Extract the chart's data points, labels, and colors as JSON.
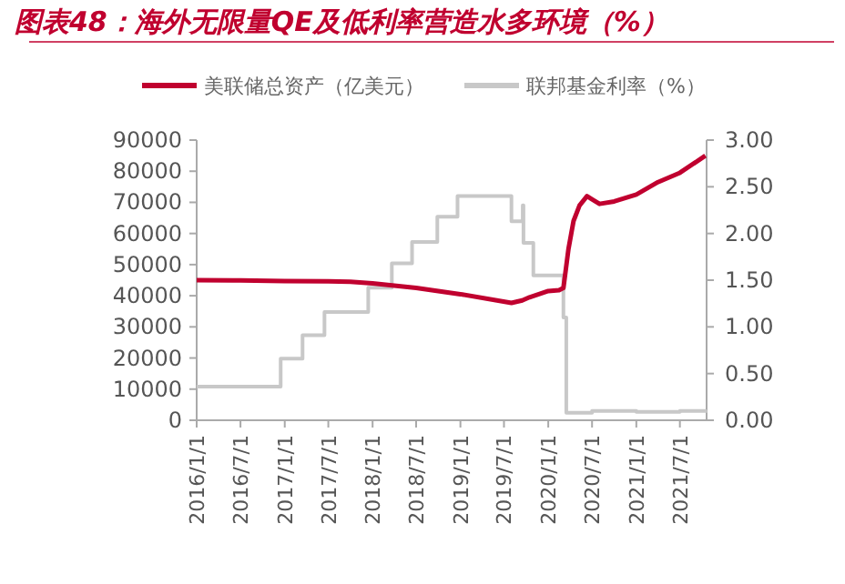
{
  "chart_data": {
    "type": "line",
    "title": "图表48：海外无限量QE及低利率营造水多环境（%）",
    "legend": "top",
    "grid": false,
    "xlim": [
      "2016-01-01",
      "2021-10-20"
    ],
    "xticks": [
      {
        "value": "2016-01-01",
        "label": "2016/1/1"
      },
      {
        "value": "2016-07-01",
        "label": "2016/7/1"
      },
      {
        "value": "2017-01-01",
        "label": "2017/1/1"
      },
      {
        "value": "2017-07-01",
        "label": "2017/7/1"
      },
      {
        "value": "2018-01-01",
        "label": "2018/1/1"
      },
      {
        "value": "2018-07-01",
        "label": "2018/7/1"
      },
      {
        "value": "2019-01-01",
        "label": "2019/1/1"
      },
      {
        "value": "2019-07-01",
        "label": "2019/7/1"
      },
      {
        "value": "2020-01-01",
        "label": "2020/1/1"
      },
      {
        "value": "2020-07-01",
        "label": "2020/7/1"
      },
      {
        "value": "2021-01-01",
        "label": "2021/1/1"
      },
      {
        "value": "2021-07-01",
        "label": "2021/7/1"
      }
    ],
    "ylim": [
      0,
      90000
    ],
    "yticks": [
      0,
      10000,
      20000,
      30000,
      40000,
      50000,
      60000,
      70000,
      80000,
      90000
    ],
    "y2lim": [
      0,
      3
    ],
    "y2ticks": [
      {
        "value": 0,
        "label": "0.00"
      },
      {
        "value": 0.5,
        "label": "0.50"
      },
      {
        "value": 1,
        "label": "1.00"
      },
      {
        "value": 1.5,
        "label": "1.50"
      },
      {
        "value": 2,
        "label": "2.00"
      },
      {
        "value": 2.5,
        "label": "2.50"
      },
      {
        "value": 3,
        "label": "3.00"
      }
    ],
    "series": [
      {
        "name": "美联储总资产（亿美元）",
        "color": "#c0002f",
        "x": [
          "2016-01-01",
          "2016-07-01",
          "2017-01-01",
          "2017-07-01",
          "2017-10-01",
          "2018-01-01",
          "2018-07-01",
          "2019-01-01",
          "2019-08-01",
          "2019-09-15",
          "2019-10-15",
          "2020-01-01",
          "2020-02-15",
          "2020-03-04",
          "2020-03-25",
          "2020-04-15",
          "2020-05-10",
          "2020-06-10",
          "2020-07-01",
          "2020-08-01",
          "2020-10-01",
          "2021-01-01",
          "2021-04-01",
          "2021-07-01",
          "2021-10-15"
        ],
        "values": [
          45000,
          44900,
          44700,
          44600,
          44500,
          44000,
          42500,
          40500,
          37700,
          38500,
          39500,
          41500,
          41800,
          42500,
          55000,
          64000,
          69000,
          72000,
          71000,
          69500,
          70300,
          72500,
          76500,
          79500,
          85000
        ]
      },
      {
        "name": "联邦基金利率（%）",
        "color": "#c8c8c8",
        "type": "step",
        "axis": "y2",
        "x": [
          "2016-01-01",
          "2016-12-15",
          "2017-03-16",
          "2017-06-15",
          "2017-12-14",
          "2018-03-22",
          "2018-06-14",
          "2018-09-27",
          "2018-12-20",
          "2019-08-01",
          "2019-09-17",
          "2019-09-20",
          "2019-10-31",
          "2020-03-04",
          "2020-03-16",
          "2020-07-01",
          "2021-01-01",
          "2021-07-01",
          "2021-10-15"
        ],
        "values": [
          0.36,
          0.66,
          0.91,
          1.16,
          1.42,
          1.68,
          1.91,
          2.18,
          2.4,
          2.13,
          2.3,
          1.9,
          1.55,
          1.1,
          0.08,
          0.1,
          0.09,
          0.1,
          0.08
        ]
      }
    ]
  }
}
